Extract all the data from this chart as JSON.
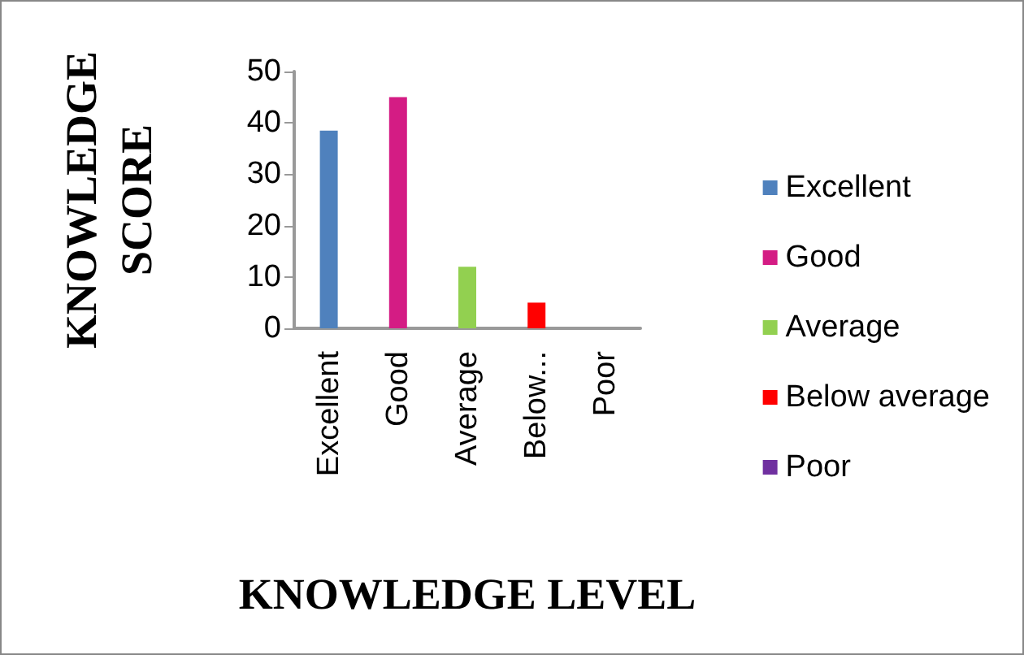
{
  "chart_data": {
    "type": "bar",
    "xlabel": "KNOWLEDGE LEVEL",
    "ylabel": "KNOWLEDGE\nSCORE",
    "categories": [
      "Excellent",
      "Good",
      "Average",
      "Below...",
      "Poor"
    ],
    "series": [
      {
        "name": "Excellent",
        "color": "#4f81bd",
        "values": [
          38.5,
          null,
          null,
          null,
          null
        ]
      },
      {
        "name": "Good",
        "color": "#d41c84",
        "values": [
          null,
          45,
          null,
          null,
          null
        ]
      },
      {
        "name": "Average",
        "color": "#92d050",
        "values": [
          null,
          null,
          12,
          null,
          null
        ]
      },
      {
        "name": "Below average",
        "color": "#ff0000",
        "values": [
          null,
          null,
          null,
          5,
          null
        ]
      },
      {
        "name": "Poor",
        "color": "#7030a0",
        "values": [
          null,
          null,
          null,
          null,
          0
        ]
      }
    ],
    "ylim": [
      0,
      50
    ],
    "yticks": [
      0,
      10,
      20,
      30,
      40,
      50
    ],
    "grid": false,
    "legend": "right"
  }
}
